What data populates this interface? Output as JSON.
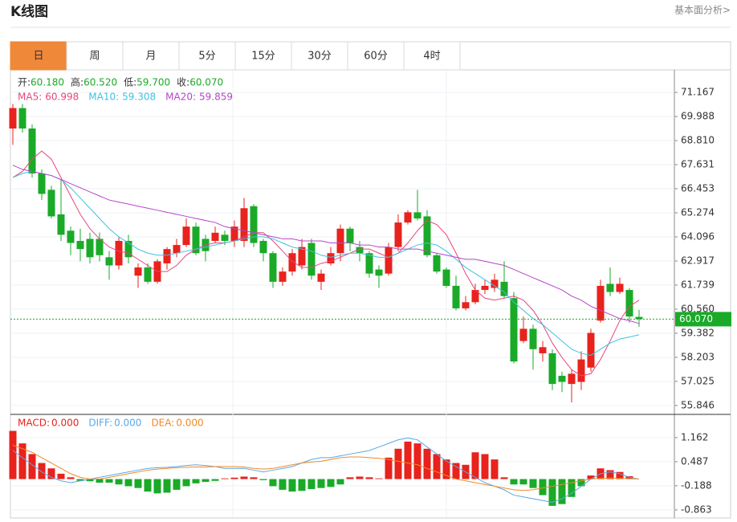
{
  "header": {
    "title": "K线图",
    "link": "基本面分析>"
  },
  "tabs": [
    "日",
    "周",
    "月",
    "5分",
    "15分",
    "30分",
    "60分",
    "4时"
  ],
  "chart_data": [
    {
      "type": "candlestick",
      "info": [
        {
          "label": "开:",
          "value": "60.180"
        },
        {
          "label": "高:",
          "value": "60.520"
        },
        {
          "label": "低:",
          "value": "59.700"
        },
        {
          "label": "收:",
          "value": "60.070"
        }
      ],
      "up_color": "#e8221c",
      "down_color": "#1aaa28",
      "open": [
        69.4,
        70.4,
        69.4,
        67.2,
        66.4,
        65.2,
        64.4,
        63.9,
        64.0,
        64.0,
        63.1,
        62.7,
        63.9,
        62.2,
        62.6,
        61.9,
        62.8,
        63.3,
        63.7,
        64.6,
        64.0,
        63.9,
        64.2,
        63.9,
        63.9,
        65.6,
        63.9,
        63.3,
        61.9,
        62.4,
        62.7,
        63.8,
        61.9,
        62.8,
        63.3,
        64.5,
        63.6,
        63.3,
        62.5,
        62.3,
        63.6,
        64.8,
        65.3,
        65.1,
        63.2,
        62.5,
        61.7,
        60.6,
        60.9,
        61.5,
        61.6,
        61.9,
        61.1,
        59.0,
        59.6,
        58.4,
        58.4,
        57.3,
        56.9,
        57.0,
        57.7,
        60.0,
        61.8,
        61.4,
        61.5,
        60.18
      ],
      "high": [
        70.6,
        70.6,
        69.6,
        67.4,
        66.6,
        66.9,
        64.6,
        64.5,
        64.3,
        64.3,
        63.4,
        64.1,
        64.2,
        62.8,
        62.8,
        63.0,
        63.6,
        64.0,
        65.0,
        64.8,
        64.2,
        64.6,
        64.4,
        64.9,
        66.0,
        65.7,
        64.0,
        63.4,
        62.6,
        63.5,
        64.0,
        64.0,
        62.5,
        63.6,
        64.7,
        64.6,
        63.9,
        63.4,
        62.7,
        63.8,
        65.2,
        65.4,
        66.4,
        65.4,
        63.3,
        62.6,
        62.2,
        61.2,
        61.8,
        62.0,
        62.3,
        62.9,
        61.4,
        60.2,
        59.8,
        59.0,
        58.6,
        57.5,
        57.6,
        58.5,
        59.6,
        62.0,
        62.6,
        62.1,
        61.6,
        60.52
      ],
      "low": [
        68.6,
        69.2,
        67.0,
        65.9,
        65.0,
        63.9,
        63.2,
        62.9,
        62.8,
        62.9,
        62.0,
        62.5,
        62.8,
        61.6,
        61.8,
        61.8,
        62.5,
        63.1,
        63.6,
        63.2,
        62.9,
        63.8,
        63.7,
        63.6,
        63.6,
        63.6,
        62.9,
        61.6,
        61.7,
        62.2,
        62.5,
        62.0,
        61.5,
        62.7,
        62.9,
        63.4,
        62.9,
        62.1,
        61.6,
        62.2,
        63.4,
        64.7,
        64.9,
        63.1,
        62.3,
        61.6,
        60.5,
        60.5,
        60.8,
        61.3,
        61.4,
        61.1,
        57.9,
        58.9,
        57.6,
        58.0,
        56.6,
        56.5,
        56.0,
        56.6,
        57.5,
        59.9,
        61.2,
        61.3,
        59.9,
        59.7
      ],
      "close": [
        70.4,
        69.4,
        67.2,
        66.2,
        65.1,
        64.2,
        63.8,
        63.5,
        63.1,
        63.2,
        62.7,
        63.9,
        63.1,
        62.6,
        61.9,
        62.9,
        63.5,
        63.7,
        64.6,
        63.3,
        63.4,
        64.3,
        63.9,
        64.6,
        65.5,
        63.8,
        63.3,
        61.9,
        62.4,
        63.3,
        63.6,
        62.2,
        62.3,
        63.3,
        64.5,
        63.8,
        63.3,
        62.3,
        62.2,
        63.6,
        64.8,
        65.3,
        65.0,
        63.2,
        62.4,
        61.7,
        60.6,
        60.9,
        61.5,
        61.7,
        62.0,
        61.2,
        58.0,
        59.6,
        58.6,
        58.7,
        56.9,
        57.0,
        57.4,
        58.1,
        59.4,
        61.7,
        61.4,
        61.8,
        60.2,
        60.07
      ],
      "series": [
        {
          "name": "MA5:",
          "color": "#e6467f",
          "values": [
            67.0,
            67.3,
            67.9,
            68.3,
            67.9,
            67.0,
            66.1,
            65.2,
            64.5,
            64.0,
            63.6,
            63.4,
            63.3,
            63.0,
            62.7,
            62.4,
            62.4,
            62.7,
            63.2,
            63.5,
            63.7,
            63.8,
            63.8,
            63.9,
            64.1,
            64.3,
            64.3,
            63.9,
            63.4,
            62.9,
            62.6,
            62.6,
            62.8,
            62.9,
            63.1,
            63.3,
            63.5,
            63.5,
            63.3,
            63.1,
            63.3,
            63.8,
            64.4,
            64.9,
            64.7,
            64.2,
            63.3,
            62.3,
            61.5,
            61.1,
            61.0,
            61.1,
            61.2,
            61.0,
            60.5,
            59.8,
            58.9,
            58.2,
            57.6,
            57.3,
            57.4,
            58.1,
            59.0,
            60.0,
            60.7,
            60.998
          ]
        },
        {
          "name": "MA10:",
          "color": "#3fc2e0",
          "values": [
            67.0,
            67.2,
            67.3,
            67.2,
            67.1,
            66.9,
            66.5,
            66.0,
            65.5,
            65.0,
            64.5,
            64.1,
            63.8,
            63.5,
            63.3,
            63.2,
            63.2,
            63.3,
            63.4,
            63.5,
            63.6,
            63.7,
            63.8,
            63.9,
            64.0,
            64.1,
            64.1,
            64.0,
            63.8,
            63.6,
            63.5,
            63.4,
            63.2,
            63.1,
            63.2,
            63.3,
            63.3,
            63.2,
            63.1,
            63.1,
            63.3,
            63.5,
            63.7,
            63.8,
            63.7,
            63.4,
            63.0,
            62.6,
            62.3,
            62.0,
            61.7,
            61.4,
            60.9,
            60.5,
            60.1,
            59.8,
            59.4,
            59.0,
            58.6,
            58.4,
            58.3,
            58.6,
            58.9,
            59.1,
            59.2,
            59.308
          ]
        },
        {
          "name": "MA20:",
          "color": "#b645c8",
          "values": [
            67.6,
            67.4,
            67.3,
            67.2,
            67.1,
            66.9,
            66.7,
            66.5,
            66.3,
            66.1,
            65.9,
            65.8,
            65.7,
            65.6,
            65.5,
            65.4,
            65.3,
            65.2,
            65.1,
            65.0,
            64.9,
            64.8,
            64.6,
            64.5,
            64.4,
            64.3,
            64.2,
            64.1,
            64.0,
            64.0,
            63.9,
            63.9,
            63.9,
            63.8,
            63.8,
            63.8,
            63.7,
            63.7,
            63.6,
            63.6,
            63.5,
            63.5,
            63.5,
            63.4,
            63.3,
            63.2,
            63.1,
            63.0,
            63.0,
            62.9,
            62.8,
            62.7,
            62.5,
            62.3,
            62.1,
            61.9,
            61.7,
            61.5,
            61.2,
            61.0,
            60.7,
            60.5,
            60.3,
            60.1,
            60.0,
            59.859
          ]
        }
      ],
      "last_price": {
        "value": 60.07,
        "label": "60.070"
      },
      "last_color": "#1aaa28",
      "ylim": [
        55.45,
        72.23
      ],
      "yticks": [
        71.167,
        69.988,
        {
          "value": 68.81,
          "label": "68.810"
        },
        67.631,
        66.453,
        65.274,
        64.096,
        62.917,
        61.739,
        {
          "value": 60.56,
          "label": "60.560"
        },
        59.382,
        58.203,
        57.025,
        55.846
      ],
      "grid": true
    },
    {
      "type": "bar",
      "legend": [
        {
          "label": "MACD:",
          "value": "0.000",
          "color": "#e8221c"
        },
        {
          "label": "DIFF:",
          "value": "0.000",
          "color": "#59a8e6"
        },
        {
          "label": "DEA:",
          "value": "0.000",
          "color": "#f08a24"
        }
      ],
      "up_color": "#e8221c",
      "down_color": "#1aaa28",
      "values": [
        1.35,
        1.0,
        0.7,
        0.45,
        0.3,
        0.15,
        0.05,
        -0.05,
        -0.06,
        -0.1,
        -0.1,
        -0.15,
        -0.2,
        -0.25,
        -0.35,
        -0.4,
        -0.38,
        -0.3,
        -0.2,
        -0.12,
        -0.08,
        -0.05,
        0.02,
        0.04,
        0.07,
        0.05,
        -0.03,
        -0.2,
        -0.3,
        -0.35,
        -0.33,
        -0.28,
        -0.25,
        -0.22,
        -0.15,
        0.05,
        0.07,
        0.05,
        0.02,
        0.6,
        0.85,
        1.05,
        1.0,
        0.85,
        0.7,
        0.55,
        0.45,
        0.4,
        0.75,
        0.7,
        0.55,
        0.05,
        -0.15,
        -0.15,
        -0.25,
        -0.45,
        -0.75,
        -0.7,
        -0.5,
        -0.2,
        0.1,
        0.3,
        0.25,
        0.2,
        0.08,
        0.0
      ],
      "series": [
        {
          "name": "DIFF",
          "color": "#59a8e6",
          "values": [
            0.8,
            0.6,
            0.4,
            0.2,
            0.05,
            -0.05,
            -0.1,
            -0.05,
            0.0,
            0.05,
            0.1,
            0.15,
            0.2,
            0.25,
            0.3,
            0.32,
            0.33,
            0.35,
            0.38,
            0.4,
            0.38,
            0.35,
            0.3,
            0.3,
            0.3,
            0.25,
            0.2,
            0.25,
            0.3,
            0.35,
            0.45,
            0.55,
            0.6,
            0.6,
            0.65,
            0.7,
            0.75,
            0.8,
            0.9,
            1.0,
            1.1,
            1.15,
            1.1,
            0.9,
            0.7,
            0.5,
            0.35,
            0.2,
            0.05,
            -0.1,
            -0.2,
            -0.3,
            -0.45,
            -0.5,
            -0.55,
            -0.6,
            -0.65,
            -0.55,
            -0.4,
            -0.2,
            0.0,
            0.15,
            0.2,
            0.15,
            0.05,
            0.0
          ]
        },
        {
          "name": "DEA",
          "color": "#f08a24",
          "values": [
            0.95,
            0.85,
            0.75,
            0.6,
            0.45,
            0.3,
            0.15,
            0.05,
            0.0,
            0.0,
            0.05,
            0.1,
            0.15,
            0.2,
            0.25,
            0.28,
            0.3,
            0.32,
            0.33,
            0.34,
            0.34,
            0.35,
            0.35,
            0.35,
            0.34,
            0.3,
            0.28,
            0.3,
            0.35,
            0.4,
            0.45,
            0.48,
            0.5,
            0.55,
            0.6,
            0.62,
            0.62,
            0.6,
            0.58,
            0.55,
            0.5,
            0.45,
            0.4,
            0.3,
            0.2,
            0.1,
            0.0,
            -0.05,
            -0.1,
            -0.15,
            -0.2,
            -0.25,
            -0.3,
            -0.32,
            -0.3,
            -0.25,
            -0.2,
            -0.15,
            -0.1,
            -0.05,
            0.0,
            0.02,
            0.03,
            0.02,
            0.01,
            0.0
          ]
        }
      ],
      "ylim": [
        -1.09,
        1.79
      ],
      "yticks": [
        1.162,
        0.487,
        -0.188,
        -0.863
      ],
      "grid": true
    }
  ]
}
